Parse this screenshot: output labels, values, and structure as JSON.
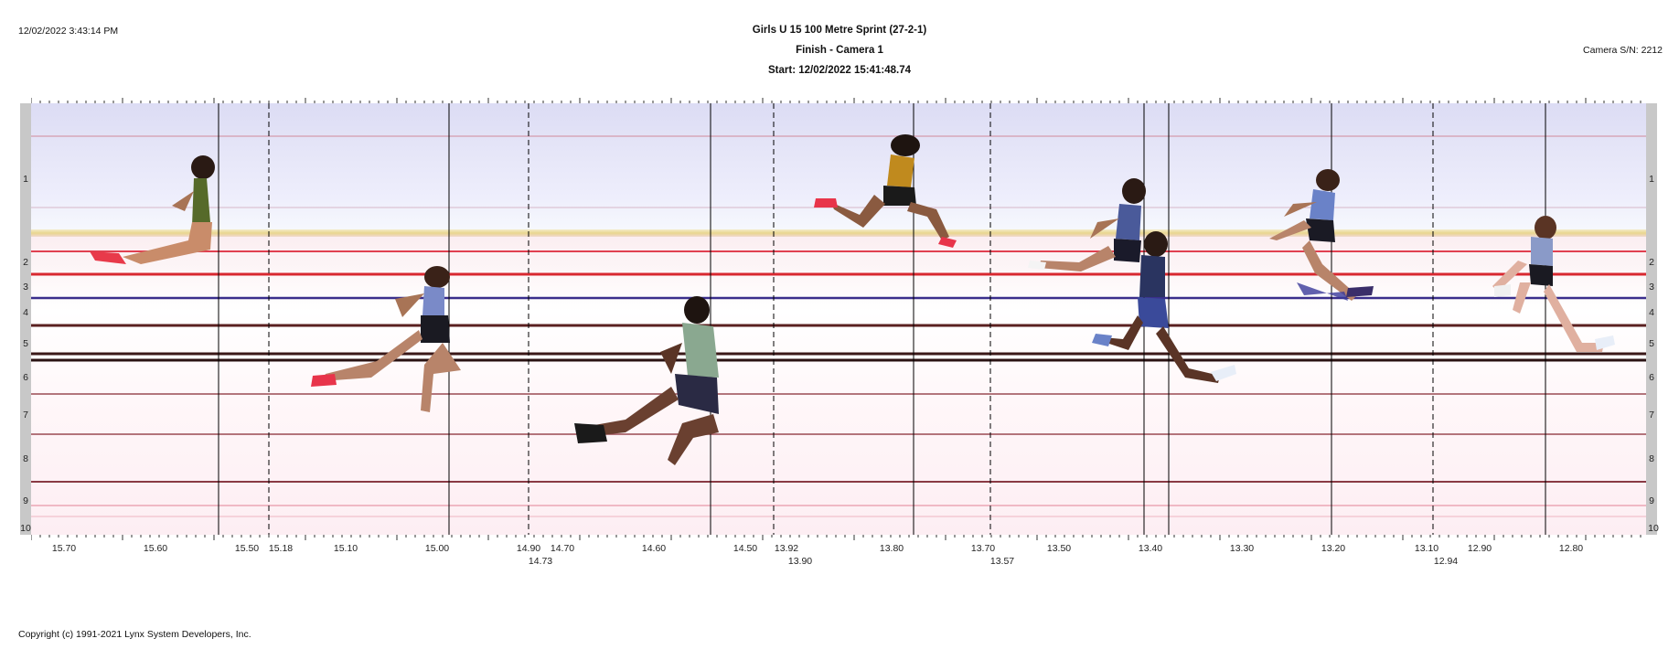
{
  "header": {
    "timestamp": "12/02/2022 3:43:14 PM",
    "event_title": "Girls U 15 100 Metre Sprint (27-2-1)",
    "camera_line": "Finish - Camera 1",
    "start_line": "Start: 12/02/2022 15:41:48.74",
    "camera_serial": "Camera S/N: 2212"
  },
  "footer": {
    "copyright": "Copyright (c) 1991-2021 Lynx System Developers, Inc."
  },
  "lanes": {
    "left": [
      "1",
      "2",
      "3",
      "4",
      "5",
      "6",
      "7",
      "8",
      "9",
      "10"
    ],
    "right": [
      "1",
      "2",
      "3",
      "4",
      "5",
      "6",
      "7",
      "8",
      "9",
      "10"
    ]
  },
  "time_axis": {
    "primary": [
      "15.70",
      "15.60",
      "15.50",
      "15.18",
      "15.10",
      "15.00",
      "14.90",
      "14.70",
      "14.60",
      "14.50",
      "13.92",
      "13.80",
      "13.70",
      "13.50",
      "13.40",
      "13.30",
      "13.20",
      "13.10",
      "12.90",
      "12.80"
    ],
    "secondary": [
      "14.73",
      "13.90",
      "13.57",
      "12.94"
    ]
  },
  "colors": {
    "lane_line_red": "#e0303a",
    "lane_line_blue": "#3030a0",
    "lane_line_dark": "#5a1e1e",
    "lane_line_thin": "#b0646e",
    "sky": "#e4e4f8",
    "grey_bar": "#c8c8c8"
  }
}
